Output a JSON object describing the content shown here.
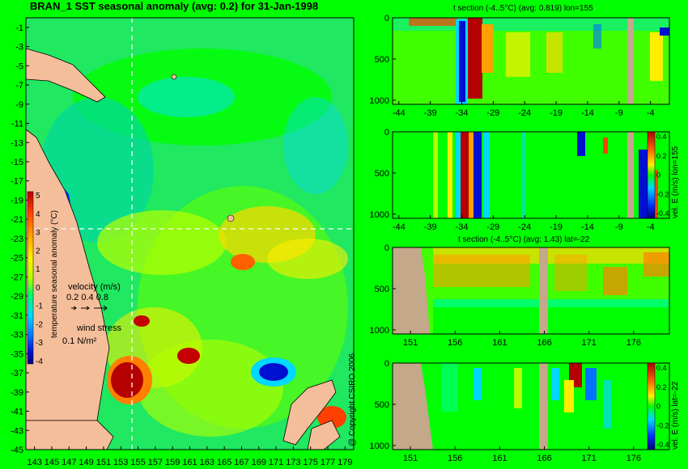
{
  "main_title": "BRAN_1 SST seasonal anomaly (avg: 0.2) for 31-Jan-1998",
  "copyright": "@ Copyright CSIRO 2006",
  "colors": {
    "background": "#00ff00",
    "land": "#f5be9a",
    "land_section": "#c4a88a",
    "palette": [
      "#00007a",
      "#0010d0",
      "#0072ff",
      "#00d8ff",
      "#00ff6a",
      "#00ff00",
      "#b6ff00",
      "#ffee00",
      "#ffa000",
      "#ff4000",
      "#b40000"
    ]
  },
  "chart_data": [
    {
      "type": "heatmap",
      "title": "BRAN_1 SST seasonal anomaly (avg: 0.2) for 31-Jan-1998",
      "x_ticks": [
        "143",
        "145",
        "147",
        "149",
        "151",
        "153",
        "155",
        "157",
        "159",
        "161",
        "163",
        "165",
        "167",
        "169",
        "171",
        "173",
        "175",
        "177",
        "179"
      ],
      "y_ticks": [
        "-1",
        "-3",
        "-5",
        "-7",
        "-9",
        "-11",
        "-13",
        "-15",
        "-17",
        "-19",
        "-21",
        "-23",
        "-25",
        "-27",
        "-29",
        "-31",
        "-33",
        "-35",
        "-37",
        "-39",
        "-41",
        "-43",
        "-45"
      ],
      "xlim": [
        142,
        180
      ],
      "ylim": [
        -45,
        0
      ],
      "crosshair": {
        "lon": 155,
        "lat": -22
      },
      "colorbar": {
        "label": "temperature seasonal anomaly (°C)",
        "ticks": [
          "5",
          "4",
          "3",
          "2",
          "1",
          "0",
          "-1",
          "-2",
          "-3",
          "-4"
        ],
        "range": [
          -4,
          5
        ]
      },
      "legend": {
        "velocity_label": "velocity (m/s)",
        "velocity_values": "0.2 0.4 0.8",
        "wind_label": "wind stress",
        "wind_value": "0.1 N/m²"
      }
    },
    {
      "type": "heatmap",
      "title": "t section (-4..5°C) (avg: 0.819) lon=155",
      "x_ticks": [
        "-44",
        "-39",
        "-34",
        "-29",
        "-24",
        "-19",
        "-14",
        "-9",
        "-4"
      ],
      "y_ticks": [
        "0",
        "500",
        "1000"
      ],
      "xlim": [
        -45,
        -1
      ],
      "ylim": [
        1050,
        0
      ]
    },
    {
      "type": "heatmap",
      "title": "",
      "x_ticks": [
        "-44",
        "-39",
        "-34",
        "-29",
        "-24",
        "-19",
        "-14",
        "-9",
        "-4"
      ],
      "y_ticks": [
        "0",
        "500",
        "1000"
      ],
      "xlim": [
        -45,
        -1
      ],
      "ylim": [
        1050,
        0
      ],
      "colorbar": {
        "label": "vel. E (m/s) lon=155",
        "ticks": [
          "0.4",
          "0.2",
          "0",
          "-0.2",
          "-0.4"
        ],
        "range": [
          -0.4,
          0.4
        ]
      }
    },
    {
      "type": "heatmap",
      "title": "t section (-4..5°C) (avg: 1.43) lat=-22",
      "x_ticks": [
        "151",
        "156",
        "161",
        "166",
        "171",
        "176"
      ],
      "y_ticks": [
        "0",
        "500",
        "1000"
      ],
      "xlim": [
        149,
        180
      ],
      "ylim": [
        1050,
        0
      ]
    },
    {
      "type": "heatmap",
      "title": "",
      "x_ticks": [
        "151",
        "156",
        "161",
        "166",
        "171",
        "176"
      ],
      "y_ticks": [
        "0",
        "500",
        "1000"
      ],
      "xlim": [
        149,
        180
      ],
      "ylim": [
        1050,
        0
      ],
      "colorbar": {
        "label": "vel. E (m/s) lat=-22",
        "ticks": [
          "0.4",
          "0.2",
          "0",
          "-0.2",
          "-0.4"
        ],
        "range": [
          -0.4,
          0.4
        ]
      }
    }
  ]
}
